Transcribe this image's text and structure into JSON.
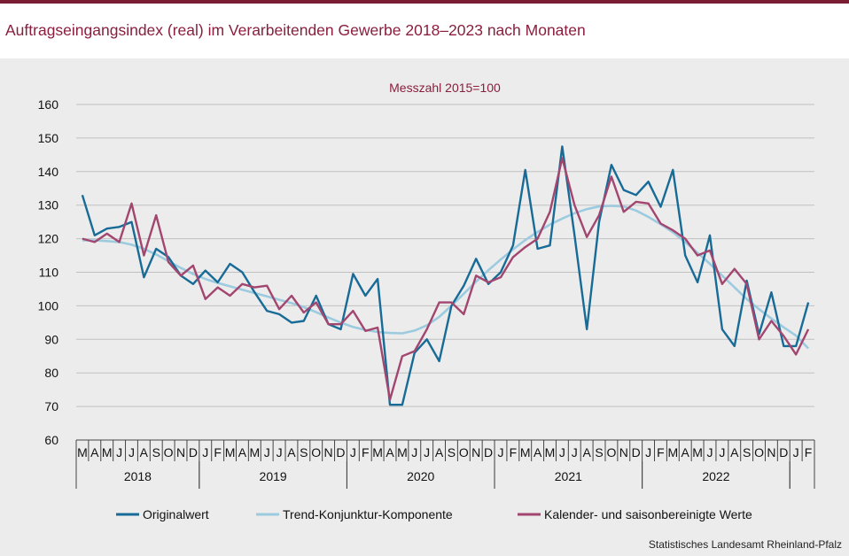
{
  "header": {
    "title": "Auftragseingangsindex (real) im Verarbeitenden Gewerbe 2018–2023 nach Monaten"
  },
  "source": "Statistisches Landesamt Rheinland-Pfalz",
  "colors": {
    "accent": "#7b1d33",
    "title": "#8a1e3e",
    "original": "#176b96",
    "trend": "#9ccbe0",
    "adjusted": "#a2466f",
    "grid": "#c0c0c0",
    "background": "#ececec"
  },
  "chart_data": {
    "type": "line",
    "subtitle": "Messzahl 2015=100",
    "ylim": [
      60,
      160
    ],
    "yticks": [
      60,
      70,
      80,
      90,
      100,
      110,
      120,
      130,
      140,
      150,
      160
    ],
    "grid": true,
    "legend_position": "bottom",
    "x": [
      "M",
      "A",
      "M",
      "J",
      "J",
      "A",
      "S",
      "O",
      "N",
      "D",
      "J",
      "F",
      "M",
      "A",
      "M",
      "J",
      "J",
      "A",
      "S",
      "O",
      "N",
      "D",
      "J",
      "F",
      "M",
      "A",
      "M",
      "J",
      "J",
      "A",
      "S",
      "O",
      "N",
      "D",
      "J",
      "F",
      "M",
      "A",
      "M",
      "J",
      "J",
      "A",
      "S",
      "O",
      "N",
      "D",
      "J",
      "F",
      "M",
      "A",
      "M",
      "J",
      "J",
      "A",
      "S",
      "O",
      "N",
      "D",
      "J",
      "F"
    ],
    "year_groups": [
      {
        "label": "2018",
        "start": 0,
        "end": 9
      },
      {
        "label": "2019",
        "start": 10,
        "end": 21
      },
      {
        "label": "2020",
        "start": 22,
        "end": 33
      },
      {
        "label": "2021",
        "start": 34,
        "end": 45
      },
      {
        "label": "2022",
        "start": 46,
        "end": 57
      },
      {
        "label": "",
        "start": 58,
        "end": 59
      }
    ],
    "series": [
      {
        "name": "Originalwert",
        "key": "original",
        "values": [
          133,
          121,
          123,
          123.5,
          125,
          108.5,
          117,
          114.5,
          109,
          106.5,
          110.5,
          107,
          112.5,
          110,
          104,
          98.5,
          97.5,
          95,
          95.5,
          103,
          94.5,
          93,
          109.5,
          103,
          108,
          70.5,
          70.5,
          86,
          90,
          83.5,
          100,
          106,
          114,
          106.5,
          110,
          118,
          140.5,
          117,
          118,
          147.5,
          121,
          93,
          125,
          142,
          134.5,
          133,
          137,
          129.5,
          140.5,
          115,
          107,
          121,
          93,
          88,
          107.5,
          91.5,
          104,
          88,
          88,
          101
        ]
      },
      {
        "name": "Trend-Konjunktur-Komponente",
        "key": "trend",
        "values": [
          119.5,
          119.5,
          119.3,
          119,
          118.2,
          117,
          115.3,
          113.3,
          111.3,
          109.5,
          108,
          106.8,
          105.8,
          104.8,
          103.8,
          102.8,
          101.8,
          100.8,
          99.6,
          98.1,
          96.5,
          95,
          93.7,
          92.8,
          92.2,
          91.9,
          91.8,
          92.6,
          94.2,
          96.7,
          100,
          103.6,
          107.2,
          110.6,
          113.8,
          116.8,
          119.6,
          122,
          124.2,
          126,
          127.6,
          128.8,
          129.6,
          129.8,
          129.6,
          128.4,
          126.5,
          124.3,
          121.9,
          119,
          115.8,
          112.5,
          109,
          105.5,
          102,
          99,
          96.2,
          93.6,
          91.1,
          87.3
        ]
      },
      {
        "name": "Kalender- und saisonbereinigte Werte",
        "key": "adjusted",
        "values": [
          120,
          119,
          121.5,
          119,
          130.5,
          115,
          127,
          113,
          109,
          112,
          102,
          105.5,
          103,
          106.5,
          105.5,
          106,
          99,
          103,
          98,
          101,
          94.5,
          94.5,
          98.5,
          92.5,
          93.5,
          72,
          85,
          86.5,
          93,
          101,
          101,
          97.5,
          109,
          107,
          108.5,
          114.5,
          117.5,
          120,
          128,
          144,
          130,
          120.5,
          127,
          138.5,
          128,
          131,
          130.5,
          124.5,
          122.5,
          120,
          115,
          116.5,
          106.5,
          111,
          106.5,
          90,
          95.5,
          91,
          85.5,
          93
        ]
      }
    ]
  }
}
